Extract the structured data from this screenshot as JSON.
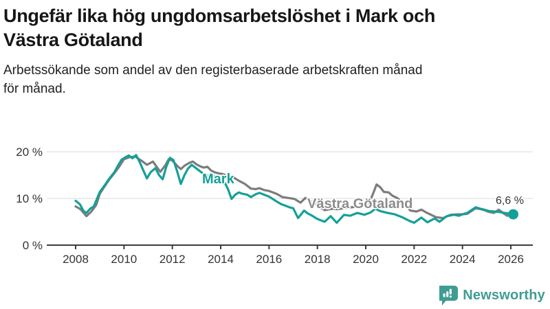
{
  "header": {
    "title": "Ungefär lika hög ungdomsarbetslöshet i Mark och Västra Götaland",
    "subtitle": "Arbetssökande som andel av den registerbaserade arbetskraften månad för månad."
  },
  "footer": {
    "brand": "Newsworthy"
  },
  "colors": {
    "mark_teal": "#13a098",
    "vastra_gray": "#7c7c7c",
    "label_gray": "#8c8c8c",
    "axis": "#3c3c3c",
    "grid": "#d8d8d8",
    "tick_text": "#333333",
    "brand_teal": "#3f9c92"
  },
  "chart_data": {
    "type": "line",
    "title": "Ungefär lika hög ungdomsarbetslöshet i Mark och Västra Götaland",
    "subtitle": "Arbetssökande som andel av den registerbaserade arbetskraften månad för månad.",
    "unit": "%",
    "x_ticks": [
      2008,
      2010,
      2012,
      2014,
      2016,
      2018,
      2020,
      2022,
      2024,
      2026
    ],
    "x_tick_labels": [
      "2008",
      "2010",
      "2012",
      "2014",
      "2016",
      "2018",
      "2020",
      "2022",
      "2024",
      "2026"
    ],
    "y_ticks": [
      0,
      10,
      20
    ],
    "y_tick_labels": [
      "0 %",
      "10 %",
      "20 %"
    ],
    "xlim": [
      2007.9,
      2026.9
    ],
    "ylim": [
      0,
      22
    ],
    "grid": "horizontal",
    "legend_position": "inline-labels",
    "end_annotation": "6,6 %",
    "series": [
      {
        "name": "Västra Götaland",
        "color": "#7c7c7c",
        "points": [
          [
            2008.0,
            8.3
          ],
          [
            2008.2,
            7.7
          ],
          [
            2008.45,
            6.2
          ],
          [
            2008.65,
            7.2
          ],
          [
            2008.85,
            8.6
          ],
          [
            2009.0,
            11.0
          ],
          [
            2009.2,
            12.6
          ],
          [
            2009.4,
            14.1
          ],
          [
            2009.6,
            15.4
          ],
          [
            2009.8,
            16.8
          ],
          [
            2010.0,
            18.4
          ],
          [
            2010.2,
            18.8
          ],
          [
            2010.45,
            19.0
          ],
          [
            2010.6,
            18.5
          ],
          [
            2010.75,
            18.0
          ],
          [
            2010.95,
            17.2
          ],
          [
            2011.2,
            17.9
          ],
          [
            2011.35,
            16.8
          ],
          [
            2011.5,
            15.7
          ],
          [
            2011.7,
            17.0
          ],
          [
            2011.85,
            18.4
          ],
          [
            2012.0,
            18.1
          ],
          [
            2012.2,
            17.0
          ],
          [
            2012.35,
            16.3
          ],
          [
            2012.5,
            17.0
          ],
          [
            2012.7,
            17.6
          ],
          [
            2012.85,
            17.9
          ],
          [
            2013.0,
            17.3
          ],
          [
            2013.15,
            16.9
          ],
          [
            2013.3,
            16.6
          ],
          [
            2013.45,
            16.8
          ],
          [
            2013.6,
            16.0
          ],
          [
            2013.75,
            15.6
          ],
          [
            2013.9,
            15.4
          ],
          [
            2014.1,
            15.2
          ],
          [
            2014.3,
            14.8
          ],
          [
            2014.5,
            14.6
          ],
          [
            2014.75,
            13.8
          ],
          [
            2015.0,
            13.1
          ],
          [
            2015.25,
            12.1
          ],
          [
            2015.45,
            12.0
          ],
          [
            2015.6,
            12.2
          ],
          [
            2015.8,
            11.8
          ],
          [
            2016.0,
            11.6
          ],
          [
            2016.2,
            11.2
          ],
          [
            2016.35,
            10.9
          ],
          [
            2016.55,
            10.3
          ],
          [
            2016.8,
            10.1
          ],
          [
            2017.05,
            9.9
          ],
          [
            2017.3,
            9.1
          ],
          [
            2017.5,
            10.1
          ],
          [
            2017.8,
            9.2
          ],
          [
            2018.05,
            8.3
          ],
          [
            2018.3,
            7.5
          ],
          [
            2018.6,
            7.8
          ],
          [
            2018.85,
            7.7
          ],
          [
            2019.1,
            7.9
          ],
          [
            2019.4,
            8.1
          ],
          [
            2019.7,
            8.3
          ],
          [
            2019.95,
            8.6
          ],
          [
            2020.15,
            9.2
          ],
          [
            2020.3,
            11.0
          ],
          [
            2020.45,
            13.0
          ],
          [
            2020.6,
            12.4
          ],
          [
            2020.75,
            11.4
          ],
          [
            2020.95,
            11.3
          ],
          [
            2021.1,
            10.6
          ],
          [
            2021.3,
            10.1
          ],
          [
            2021.55,
            9.0
          ],
          [
            2021.85,
            7.4
          ],
          [
            2022.1,
            7.2
          ],
          [
            2022.3,
            7.6
          ],
          [
            2022.5,
            7.0
          ],
          [
            2022.7,
            6.5
          ],
          [
            2022.9,
            6.0
          ],
          [
            2023.2,
            5.8
          ],
          [
            2023.5,
            6.5
          ],
          [
            2023.8,
            6.6
          ],
          [
            2024.0,
            6.6
          ],
          [
            2024.2,
            6.7
          ],
          [
            2024.4,
            7.4
          ],
          [
            2024.55,
            7.9
          ],
          [
            2024.75,
            7.7
          ],
          [
            2024.9,
            7.5
          ],
          [
            2025.1,
            7.1
          ],
          [
            2025.3,
            6.9
          ],
          [
            2025.5,
            7.6
          ],
          [
            2025.7,
            6.8
          ],
          [
            2025.85,
            6.3
          ],
          [
            2026.0,
            6.4
          ]
        ]
      },
      {
        "name": "Mark",
        "color": "#13a098",
        "end_dot": true,
        "end_value": 6.6,
        "points": [
          [
            2008.0,
            9.5
          ],
          [
            2008.17,
            8.8
          ],
          [
            2008.33,
            7.3
          ],
          [
            2008.45,
            6.9
          ],
          [
            2008.6,
            7.8
          ],
          [
            2008.75,
            8.3
          ],
          [
            2009.0,
            11.4
          ],
          [
            2009.2,
            12.8
          ],
          [
            2009.4,
            14.3
          ],
          [
            2009.6,
            15.6
          ],
          [
            2009.75,
            17.0
          ],
          [
            2009.9,
            18.3
          ],
          [
            2010.05,
            18.8
          ],
          [
            2010.2,
            19.2
          ],
          [
            2010.35,
            18.6
          ],
          [
            2010.5,
            19.3
          ],
          [
            2010.65,
            17.8
          ],
          [
            2010.8,
            16.0
          ],
          [
            2010.95,
            14.3
          ],
          [
            2011.1,
            15.6
          ],
          [
            2011.3,
            16.5
          ],
          [
            2011.45,
            15.0
          ],
          [
            2011.6,
            14.1
          ],
          [
            2011.75,
            16.8
          ],
          [
            2011.9,
            18.7
          ],
          [
            2012.05,
            18.2
          ],
          [
            2012.2,
            15.8
          ],
          [
            2012.35,
            13.1
          ],
          [
            2012.5,
            15.0
          ],
          [
            2012.65,
            16.4
          ],
          [
            2012.8,
            17.2
          ],
          [
            2012.95,
            16.6
          ],
          [
            2013.1,
            16.0
          ],
          [
            2013.25,
            15.4
          ],
          [
            2013.4,
            15.0
          ],
          [
            2013.55,
            14.7
          ],
          [
            2013.7,
            14.9
          ],
          [
            2013.85,
            14.4
          ],
          [
            2014.0,
            14.0
          ],
          [
            2014.15,
            13.6
          ],
          [
            2014.3,
            12.0
          ],
          [
            2014.45,
            9.9
          ],
          [
            2014.6,
            10.8
          ],
          [
            2014.75,
            11.3
          ],
          [
            2014.9,
            11.0
          ],
          [
            2015.1,
            10.8
          ],
          [
            2015.25,
            10.3
          ],
          [
            2015.45,
            10.9
          ],
          [
            2015.6,
            11.2
          ],
          [
            2015.8,
            10.8
          ],
          [
            2016.0,
            10.4
          ],
          [
            2016.15,
            9.9
          ],
          [
            2016.3,
            9.4
          ],
          [
            2016.5,
            8.8
          ],
          [
            2016.7,
            8.4
          ],
          [
            2016.85,
            8.1
          ],
          [
            2017.0,
            7.9
          ],
          [
            2017.2,
            5.8
          ],
          [
            2017.45,
            7.4
          ],
          [
            2017.6,
            6.8
          ],
          [
            2017.75,
            6.4
          ],
          [
            2018.0,
            5.6
          ],
          [
            2018.3,
            5.0
          ],
          [
            2018.55,
            6.2
          ],
          [
            2018.8,
            4.8
          ],
          [
            2019.1,
            6.5
          ],
          [
            2019.35,
            6.3
          ],
          [
            2019.65,
            6.9
          ],
          [
            2019.95,
            6.5
          ],
          [
            2020.2,
            7.0
          ],
          [
            2020.4,
            7.8
          ],
          [
            2020.6,
            7.3
          ],
          [
            2020.9,
            6.9
          ],
          [
            2021.2,
            6.6
          ],
          [
            2021.5,
            6.0
          ],
          [
            2021.8,
            5.2
          ],
          [
            2022.0,
            4.8
          ],
          [
            2022.3,
            5.9
          ],
          [
            2022.55,
            4.9
          ],
          [
            2022.85,
            5.7
          ],
          [
            2023.05,
            5.0
          ],
          [
            2023.35,
            6.2
          ],
          [
            2023.65,
            6.5
          ],
          [
            2023.85,
            6.3
          ],
          [
            2024.0,
            6.6
          ],
          [
            2024.2,
            6.9
          ],
          [
            2024.4,
            7.6
          ],
          [
            2024.55,
            8.1
          ],
          [
            2024.75,
            7.8
          ],
          [
            2024.9,
            7.6
          ],
          [
            2025.1,
            7.3
          ],
          [
            2025.3,
            7.2
          ],
          [
            2025.5,
            7.1
          ],
          [
            2025.75,
            6.9
          ],
          [
            2026.0,
            6.7
          ],
          [
            2026.1,
            6.6
          ]
        ]
      }
    ]
  }
}
